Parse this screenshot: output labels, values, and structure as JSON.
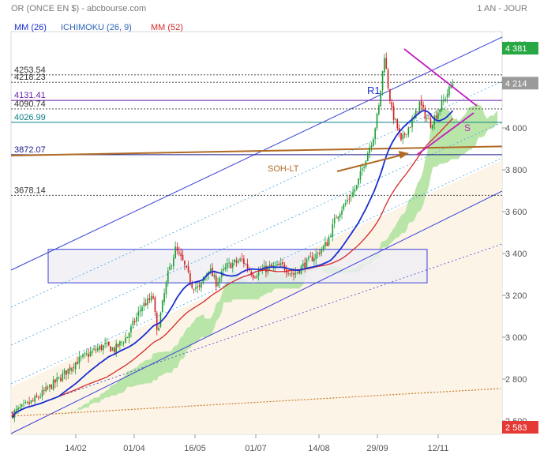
{
  "header": {
    "title": "OR (ONCE EN $) - abcbourse.com",
    "period": "1 AN - JOUR"
  },
  "legend": [
    {
      "label": "MM (26)",
      "color": "#1a2fd0"
    },
    {
      "label": "ICHIMOKU (26, 9)",
      "color": "#2a62b8"
    },
    {
      "label": "MM (52)",
      "color": "#d42a2a"
    }
  ],
  "levels": [
    {
      "label": "4253.54",
      "value": 4253.54,
      "color": "#333333",
      "style": "dotted"
    },
    {
      "label": "4218.23",
      "value": 4218.23,
      "color": "#333333",
      "style": "dotted"
    },
    {
      "label": "4131.41",
      "value": 4131.41,
      "color": "#6a1fa8",
      "style": "solid"
    },
    {
      "label": "4090.74",
      "value": 4090.74,
      "color": "#333333",
      "style": "dotted"
    },
    {
      "label": "4026.99",
      "value": 4026.99,
      "color": "#0f7f86",
      "style": "solid"
    },
    {
      "label": "3872.07",
      "value": 3872.07,
      "color": "#1a1a8a",
      "style": "solid"
    },
    {
      "label": "3678.14",
      "value": 3678.14,
      "color": "#333333",
      "style": "dotted"
    }
  ],
  "annotations": {
    "r1": "R1",
    "s": "S",
    "soh": "SOH-LT"
  },
  "price_badges": [
    {
      "label": "4 381",
      "value": 4381,
      "color": "#27a844"
    },
    {
      "label": "4 214",
      "value": 4214,
      "color": "#9a9a9a"
    },
    {
      "label": "2 583",
      "value": 2583,
      "color": "#e53935"
    }
  ],
  "chart_data": {
    "type": "candlestick",
    "title": "OR (ONCE EN $)",
    "ylim": [
      2580,
      4460
    ],
    "y_ticks": [
      {
        "value": 2600,
        "label": "2 600"
      },
      {
        "value": 2800,
        "label": "2 800"
      },
      {
        "value": 3000,
        "label": "3 000"
      },
      {
        "value": 3200,
        "label": "3 200"
      },
      {
        "value": 3400,
        "label": "3 400"
      },
      {
        "value": 3600,
        "label": "3 600"
      },
      {
        "value": 3800,
        "label": "3 800"
      },
      {
        "value": 4000,
        "label": "4 000"
      },
      {
        "value": 4200,
        "label": "4 200"
      },
      {
        "value": 4400,
        "label": "4 400"
      }
    ],
    "x_ticks": [
      "14/02",
      "01/04",
      "16/05",
      "01/07",
      "14/08",
      "29/09",
      "12/11"
    ],
    "series": [
      {
        "name": "MM (26)",
        "color": "#1a2fd0"
      },
      {
        "name": "MM (52)",
        "color": "#d42a2a"
      },
      {
        "name": "ICHIMOKU (26, 9)",
        "color": "#2a62b8"
      }
    ],
    "price_path": [
      [
        0,
        2635
      ],
      [
        12,
        2700
      ],
      [
        25,
        2800
      ],
      [
        34,
        2880
      ],
      [
        45,
        2940
      ],
      [
        50,
        2960
      ],
      [
        55,
        2940
      ],
      [
        62,
        3005
      ],
      [
        70,
        3150
      ],
      [
        76,
        3190
      ],
      [
        78,
        3020
      ],
      [
        80,
        3110
      ],
      [
        84,
        3300
      ],
      [
        88,
        3420
      ],
      [
        92,
        3360
      ],
      [
        97,
        3250
      ],
      [
        101,
        3230
      ],
      [
        106,
        3330
      ],
      [
        110,
        3260
      ],
      [
        116,
        3340
      ],
      [
        124,
        3370
      ],
      [
        130,
        3300
      ],
      [
        138,
        3330
      ],
      [
        146,
        3340
      ],
      [
        152,
        3300
      ],
      [
        158,
        3350
      ],
      [
        165,
        3400
      ],
      [
        170,
        3450
      ],
      [
        175,
        3580
      ],
      [
        180,
        3640
      ],
      [
        186,
        3720
      ],
      [
        191,
        3860
      ],
      [
        195,
        3960
      ],
      [
        198,
        4100
      ],
      [
        201,
        4350
      ],
      [
        203,
        4200
      ],
      [
        205,
        4080
      ],
      [
        208,
        4000
      ],
      [
        210,
        3930
      ],
      [
        213,
        3990
      ],
      [
        217,
        4040
      ],
      [
        220,
        4120
      ],
      [
        223,
        4060
      ],
      [
        226,
        4020
      ],
      [
        230,
        4080
      ],
      [
        234,
        4150
      ],
      [
        238,
        4214
      ]
    ]
  }
}
